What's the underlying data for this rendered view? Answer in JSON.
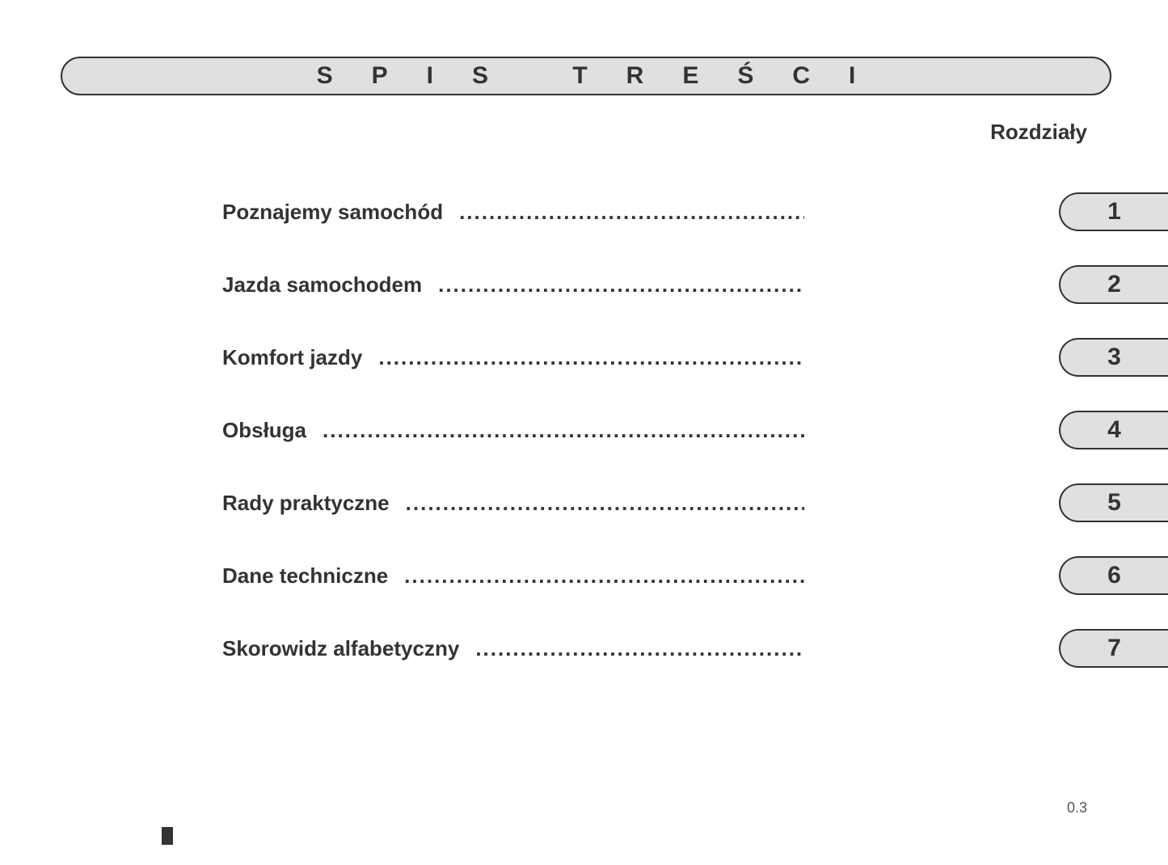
{
  "title": "SPIS TREŚCI",
  "subtitle": "Rozdziały",
  "pageNumber": "0.3",
  "colors": {
    "banner_bg": "#e0e0e0",
    "border": "#333333",
    "text": "#333333",
    "background": "#ffffff"
  },
  "typography": {
    "title_fontsize": 30,
    "title_letter_spacing": 48,
    "label_fontsize": 26,
    "chapter_fontsize": 30,
    "subtitle_fontsize": 26,
    "page_number_fontsize": 18
  },
  "toc": [
    {
      "label": "Poznajemy samochód",
      "chapter": "1"
    },
    {
      "label": "Jazda samochodem",
      "chapter": "2"
    },
    {
      "label": "Komfort jazdy",
      "chapter": "3"
    },
    {
      "label": "Obsługa",
      "chapter": "4"
    },
    {
      "label": "Rady praktyczne",
      "chapter": "5"
    },
    {
      "label": "Dane techniczne",
      "chapter": "6"
    },
    {
      "label": "Skorowidz alfabetyczny",
      "chapter": "7"
    }
  ],
  "dots_fill": "................................................................................................"
}
